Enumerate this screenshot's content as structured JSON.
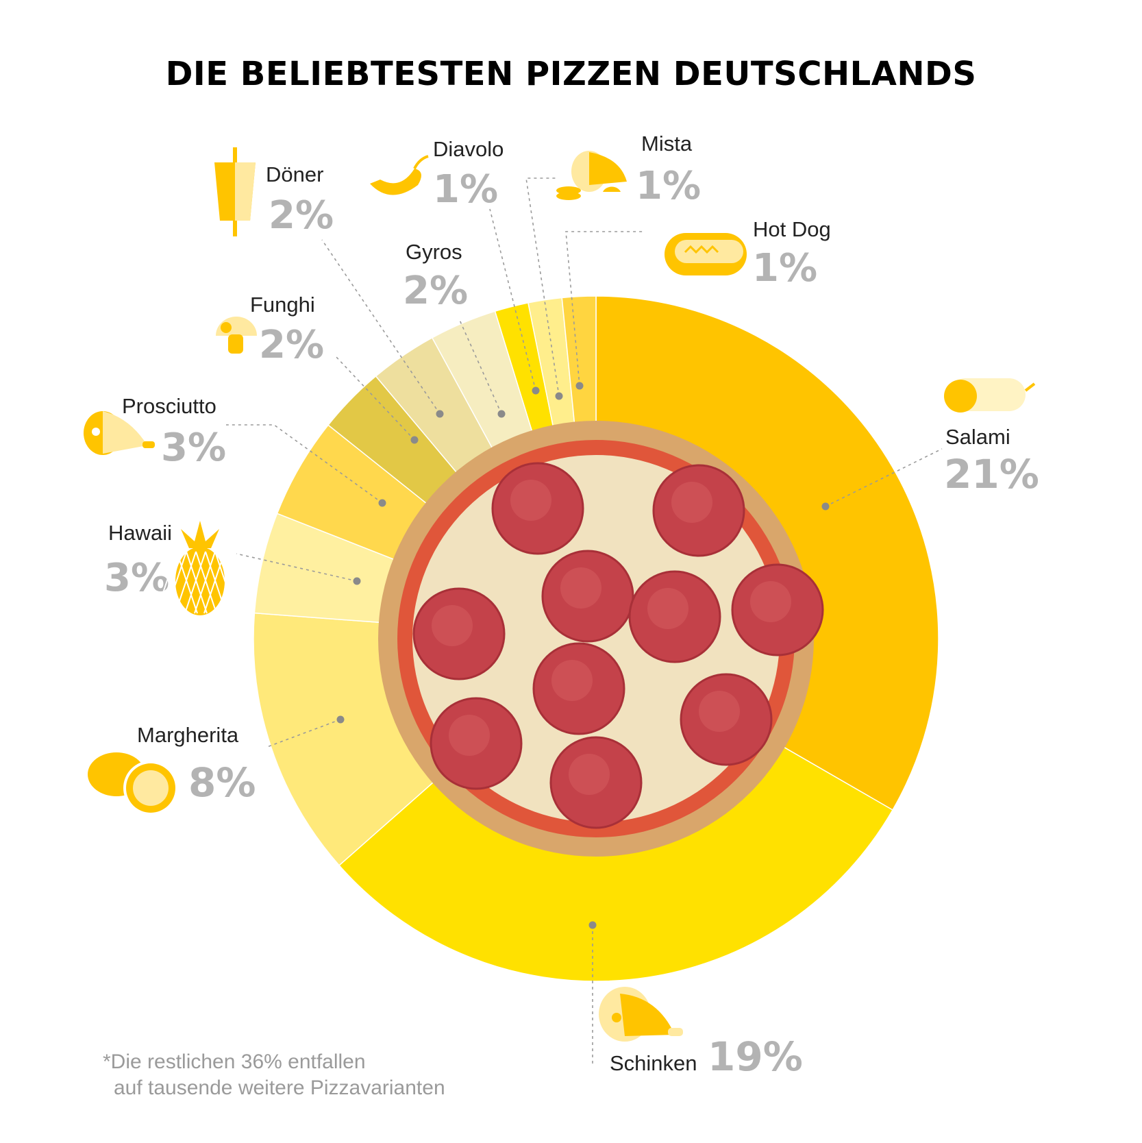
{
  "title": "DIE BELIEBTESTEN PIZZEN DEUTSCHLANDS",
  "footnote": [
    "*Die restlichen 36% entfallen",
    "auf tausende weitere Pizzavarianten"
  ],
  "chart_data": {
    "type": "pie",
    "title": "DIE BELIEBTESTEN PIZZEN DEUTSCHLANDS",
    "unit": "%",
    "slices": [
      {
        "name": "Salami",
        "label": "21%",
        "value": 21,
        "color": "#FFC400",
        "icon": "salami-icon"
      },
      {
        "name": "Schinken",
        "label": "19%",
        "value": 19,
        "color": "#FFE100",
        "icon": "ham-icon"
      },
      {
        "name": "Margherita",
        "label": "8%",
        "value": 8,
        "color": "#FFE97A",
        "icon": "tomato-icon"
      },
      {
        "name": "Hawaii",
        "label": "3%",
        "value": 3,
        "color": "#FFF0A0",
        "icon": "pineapple-icon"
      },
      {
        "name": "Prosciutto",
        "label": "3%",
        "value": 3,
        "color": "#FFD84D",
        "icon": "prosciutto-icon"
      },
      {
        "name": "Funghi",
        "label": "2%",
        "value": 2,
        "color": "#E2C846",
        "icon": "mushroom-icon"
      },
      {
        "name": "Döner",
        "label": "2%",
        "value": 2,
        "color": "#EEDF9E",
        "icon": "doner-icon"
      },
      {
        "name": "Gyros",
        "label": "2%",
        "value": 2,
        "color": "#F6EDC0",
        "icon": "gyros-icon"
      },
      {
        "name": "Diavolo",
        "label": "1%",
        "value": 1,
        "color": "#FFE100",
        "icon": "chili-icon"
      },
      {
        "name": "Mista",
        "label": "1%",
        "value": 1,
        "color": "#FFEE8C",
        "icon": "mista-icon"
      },
      {
        "name": "Hot Dog",
        "label": "1%",
        "value": 1,
        "color": "#FFD540",
        "icon": "hotdog-icon"
      }
    ],
    "center_image": "pizza-photo"
  }
}
